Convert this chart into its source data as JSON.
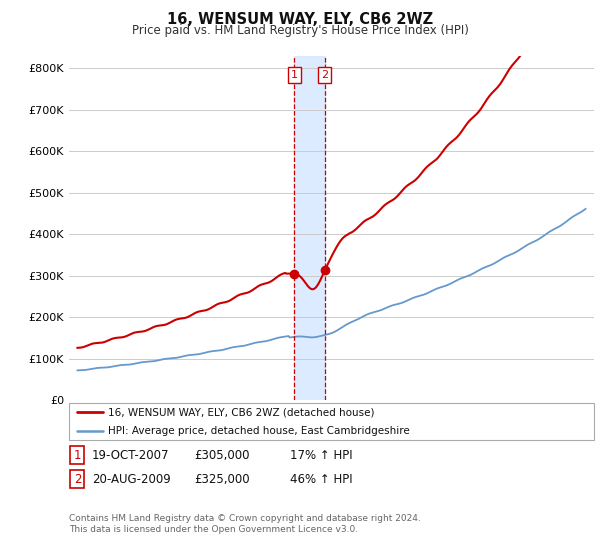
{
  "title": "16, WENSUM WAY, ELY, CB6 2WZ",
  "subtitle": "Price paid vs. HM Land Registry's House Price Index (HPI)",
  "ylabel_ticks": [
    "£0",
    "£100K",
    "£200K",
    "£300K",
    "£400K",
    "£500K",
    "£600K",
    "£700K",
    "£800K"
  ],
  "ytick_values": [
    0,
    100000,
    200000,
    300000,
    400000,
    500000,
    600000,
    700000,
    800000
  ],
  "ylim": [
    0,
    830000
  ],
  "sale1_x": 2007.8,
  "sale2_x": 2009.6,
  "sale1_price": 305000,
  "sale2_price": 325000,
  "sale1_date": "19-OCT-2007",
  "sale2_date": "20-AUG-2009",
  "sale1_pct": "17% ↑ HPI",
  "sale2_pct": "46% ↑ HPI",
  "legend_line1": "16, WENSUM WAY, ELY, CB6 2WZ (detached house)",
  "legend_line2": "HPI: Average price, detached house, East Cambridgeshire",
  "footnote1": "Contains HM Land Registry data © Crown copyright and database right 2024.",
  "footnote2": "This data is licensed under the Open Government Licence v3.0.",
  "line_color_red": "#cc0000",
  "line_color_blue": "#6699cc",
  "shading_color": "#d6e8ff",
  "grid_color": "#cccccc",
  "xlim_left": 1994.5,
  "xlim_right": 2025.5
}
